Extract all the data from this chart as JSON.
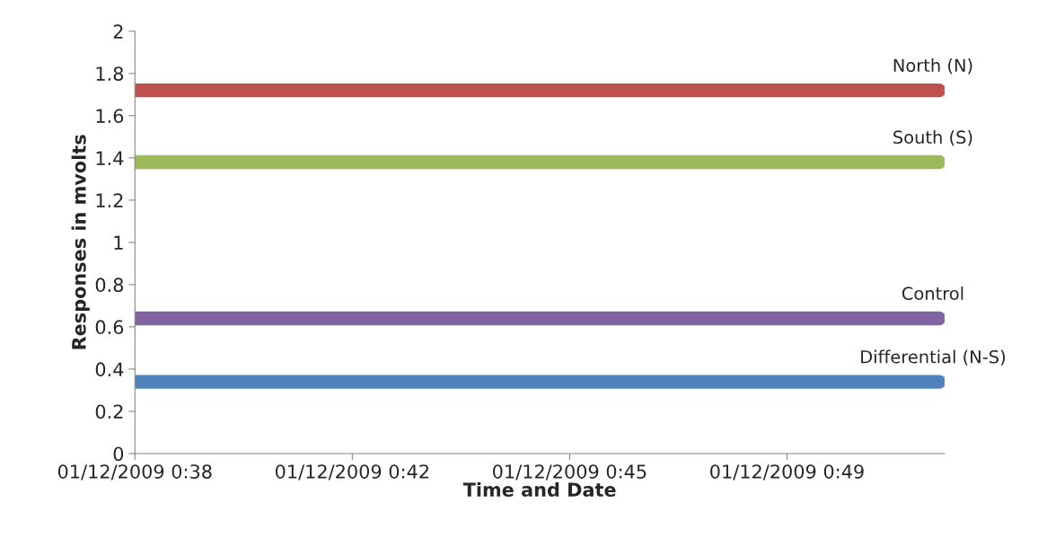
{
  "chart_data": {
    "type": "line",
    "xlabel": "Time and Date",
    "ylabel": "Responses in mvolts",
    "categories": [
      "01/12/2009 0:38",
      null,
      null,
      null,
      null,
      null,
      null,
      null,
      null,
      null,
      "01/12/2009 0:42",
      null,
      null,
      null,
      null,
      null,
      null,
      null,
      null,
      null,
      "01/12/2009 0:45",
      null,
      null,
      null,
      null,
      null,
      null,
      null,
      null,
      null,
      "01/12/2009 0:49",
      null,
      null,
      null,
      null,
      null,
      null,
      null
    ],
    "series": [
      {
        "name": "North (N)",
        "color": "#c0504d",
        "values": [
          1.72,
          1.72,
          1.72,
          1.72,
          1.72,
          1.72,
          1.72,
          1.72,
          1.72,
          1.72,
          1.72,
          1.72,
          1.72,
          1.72,
          1.72,
          1.72,
          1.72,
          1.72,
          1.72,
          1.72,
          1.72,
          1.72,
          1.72,
          1.72,
          1.72,
          1.72,
          1.72,
          1.72,
          1.72,
          1.72,
          1.72,
          1.72,
          1.72,
          1.72,
          1.72,
          1.72,
          1.72,
          1.72
        ]
      },
      {
        "name": "South (S)",
        "color": "#9bbb59",
        "values": [
          1.38,
          1.38,
          1.38,
          1.38,
          1.38,
          1.38,
          1.38,
          1.38,
          1.38,
          1.38,
          1.38,
          1.38,
          1.38,
          1.38,
          1.38,
          1.38,
          1.38,
          1.38,
          1.38,
          1.38,
          1.38,
          1.38,
          1.38,
          1.38,
          1.38,
          1.38,
          1.38,
          1.38,
          1.38,
          1.38,
          1.38,
          1.38,
          1.38,
          1.38,
          1.38,
          1.38,
          1.38,
          1.38
        ]
      },
      {
        "name": "Control",
        "color": "#8064a2",
        "values": [
          0.64,
          0.64,
          0.64,
          0.64,
          0.64,
          0.64,
          0.64,
          0.64,
          0.64,
          0.64,
          0.64,
          0.64,
          0.64,
          0.64,
          0.64,
          0.64,
          0.64,
          0.64,
          0.64,
          0.64,
          0.64,
          0.64,
          0.64,
          0.64,
          0.64,
          0.64,
          0.64,
          0.64,
          0.64,
          0.64,
          0.64,
          0.64,
          0.64,
          0.64,
          0.64,
          0.64,
          0.64,
          0.64
        ]
      },
      {
        "name": "Differential (N-S)",
        "color": "#4f81bd",
        "values": [
          0.34,
          0.34,
          0.34,
          0.34,
          0.34,
          0.34,
          0.34,
          0.34,
          0.34,
          0.34,
          0.34,
          0.34,
          0.34,
          0.34,
          0.34,
          0.34,
          0.34,
          0.34,
          0.34,
          0.34,
          0.34,
          0.34,
          0.34,
          0.34,
          0.34,
          0.34,
          0.34,
          0.34,
          0.34,
          0.34,
          0.34,
          0.34,
          0.34,
          0.34,
          0.34,
          0.34,
          0.34,
          0.34
        ]
      }
    ],
    "ylim": [
      0,
      2
    ],
    "yticks": [
      0,
      0.2,
      0.4,
      0.6,
      0.8,
      1,
      1.2,
      1.4,
      1.6,
      1.8,
      2
    ],
    "grid": false,
    "legend": false,
    "marker": "none",
    "line_style": "solid"
  }
}
